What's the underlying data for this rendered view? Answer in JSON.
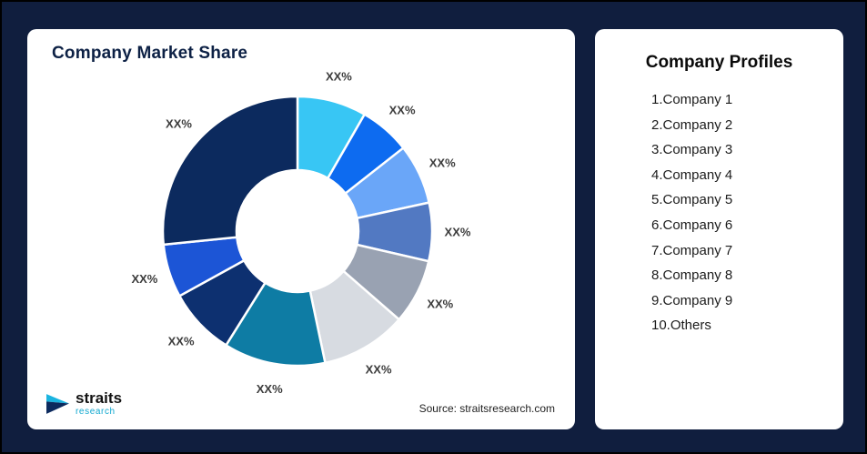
{
  "page": {
    "background_color": "#101e3e",
    "border_color": "#000000",
    "card_color": "#ffffff"
  },
  "left_card": {
    "title": "Company Market Share",
    "source": "Source: straitsresearch.com",
    "logo": {
      "name": "straits",
      "sub": "research",
      "icon": "straits-arrow-icon",
      "accent_color": "#11a8cf"
    }
  },
  "right_card": {
    "title": "Company Profiles",
    "items": [
      "1.Company 1",
      "2.Company 2",
      "3.Company 3",
      "4.Company 4",
      "5.Company 5",
      "6.Company 6",
      "7.Company 7",
      "8.Company 8",
      "9.Company 9",
      "10.Others"
    ]
  },
  "chart_data": {
    "type": "pie",
    "subtype": "donut",
    "title": "Company Market Share",
    "legend_position": "none",
    "data_label_text": "XX%",
    "start_angle_deg": 0,
    "direction": "clockwise",
    "inner_radius_ratio": 0.45,
    "values_estimated_from_arc_angles": true,
    "series": [
      {
        "name": "Company 1",
        "label": "XX%",
        "value": 8.3,
        "color": "#38c6f4"
      },
      {
        "name": "Company 2",
        "label": "XX%",
        "value": 6.1,
        "color": "#0d6bf0"
      },
      {
        "name": "Company 3",
        "label": "XX%",
        "value": 7.2,
        "color": "#6aa6f8"
      },
      {
        "name": "Company 4",
        "label": "XX%",
        "value": 7.0,
        "color": "#5279c2"
      },
      {
        "name": "Company 5",
        "label": "XX%",
        "value": 7.8,
        "color": "#99a2b2"
      },
      {
        "name": "Company 6",
        "label": "XX%",
        "value": 10.3,
        "color": "#d7dbe1"
      },
      {
        "name": "Company 7",
        "label": "XX%",
        "value": 12.2,
        "color": "#0e7ca4"
      },
      {
        "name": "Company 8",
        "label": "XX%",
        "value": 8.1,
        "color": "#0d3070"
      },
      {
        "name": "Company 9",
        "label": "XX%",
        "value": 6.4,
        "color": "#1c55d6"
      },
      {
        "name": "Others",
        "label": "XX%",
        "value": 26.6,
        "color": "#0c2a5e"
      }
    ]
  }
}
